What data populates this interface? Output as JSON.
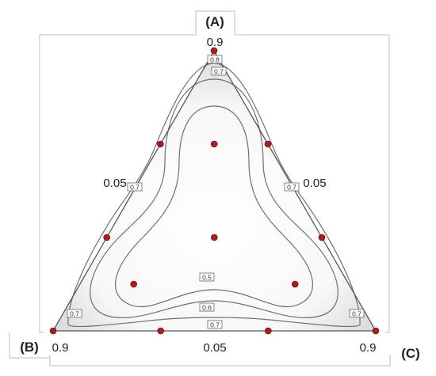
{
  "chart_data": {
    "type": "mixture-design-contour",
    "vertex_labels": {
      "top": "(A)",
      "left": "(B)",
      "right": "(C)"
    },
    "axis_values": {
      "top_vertex": "0.9",
      "left_vertex": "0.9",
      "right_vertex": "0.9",
      "left_edge": "0.05",
      "right_edge": "0.05",
      "bottom_edge": "0.05"
    },
    "component_range": [
      0.05,
      0.9
    ],
    "design_points": [
      {
        "A": 0.9,
        "B": 0.05,
        "C": 0.05
      },
      {
        "A": 0.05,
        "B": 0.9,
        "C": 0.05
      },
      {
        "A": 0.05,
        "B": 0.05,
        "C": 0.9
      },
      {
        "A": 0.6167,
        "B": 0.3333,
        "C": 0.05
      },
      {
        "A": 0.3333,
        "B": 0.6167,
        "C": 0.05
      },
      {
        "A": 0.6167,
        "B": 0.05,
        "C": 0.3333
      },
      {
        "A": 0.3333,
        "B": 0.05,
        "C": 0.6167
      },
      {
        "A": 0.05,
        "B": 0.6167,
        "C": 0.3333
      },
      {
        "A": 0.05,
        "B": 0.3333,
        "C": 0.6167
      },
      {
        "A": 0.3333,
        "B": 0.3333,
        "C": 0.3333
      },
      {
        "A": 0.6167,
        "B": 0.1917,
        "C": 0.1917
      },
      {
        "A": 0.1917,
        "B": 0.6167,
        "C": 0.1917
      },
      {
        "A": 0.1917,
        "B": 0.1917,
        "C": 0.6167
      }
    ],
    "contour_levels": [
      "0.5",
      "0.6",
      "0.7",
      "0.8"
    ],
    "contour_labels": [
      {
        "level": "0.8",
        "near": "top vertex"
      },
      {
        "level": "0.7",
        "near": "top vertex"
      },
      {
        "level": "0.7",
        "near": "left edge"
      },
      {
        "level": "0.7",
        "near": "right edge"
      },
      {
        "level": "0.7",
        "near": "bottom-left corner"
      },
      {
        "level": "0.7",
        "near": "bottom-right corner"
      },
      {
        "level": "0.5",
        "near": "bottom interior"
      },
      {
        "level": "0.6",
        "near": "bottom interior"
      },
      {
        "level": "0.7",
        "near": "bottom edge"
      }
    ],
    "colors": {
      "point": "#b01a1a",
      "contour": "#707070",
      "outline": "#555555",
      "fill": "#f4f4f4"
    }
  }
}
